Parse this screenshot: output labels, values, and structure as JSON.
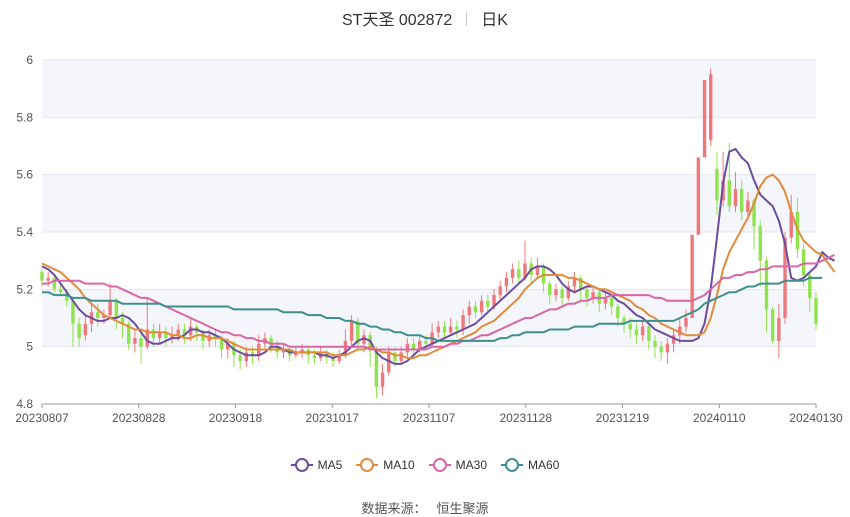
{
  "title": {
    "name": "ST天圣 002872",
    "period": "日K"
  },
  "source": {
    "label": "数据来源：",
    "name": "恒生聚源"
  },
  "chart_data": {
    "type": "candlestick",
    "x_tick_labels": [
      "20230807",
      "20230828",
      "20230918",
      "20231017",
      "20231107",
      "20231128",
      "20231219",
      "20240110",
      "20240130"
    ],
    "y_tick_labels": [
      "4.8",
      "5",
      "5.2",
      "5.4",
      "5.6",
      "5.8",
      "6"
    ],
    "ylim": [
      4.8,
      6.0
    ],
    "grid": true,
    "legend_position": "bottom",
    "colors": {
      "up": "#f0787a",
      "down": "#8fe34c",
      "grid_band": "#f4f6fb"
    },
    "series": [
      {
        "name": "MA5",
        "color": "#6b4d9e",
        "values": [
          5.28,
          5.27,
          5.25,
          5.22,
          5.19,
          5.16,
          5.13,
          5.11,
          5.1,
          5.09,
          5.09,
          5.1,
          5.1,
          5.11,
          5.1,
          5.08,
          5.05,
          5.02,
          5.01,
          5.01,
          5.02,
          5.03,
          5.03,
          5.04,
          5.06,
          5.06,
          5.05,
          5.05,
          5.04,
          5.03,
          5.01,
          4.99,
          4.98,
          4.97,
          4.97,
          4.97,
          4.98,
          5.0,
          5.0,
          4.99,
          4.98,
          4.98,
          4.98,
          4.98,
          4.98,
          4.97,
          4.97,
          4.96,
          4.97,
          4.98,
          5.0,
          5.02,
          5.03,
          5.02,
          4.98,
          4.96,
          4.95,
          4.94,
          4.94,
          4.95,
          4.97,
          4.99,
          5.0,
          5.01,
          5.02,
          5.03,
          5.04,
          5.05,
          5.06,
          5.07,
          5.08,
          5.1,
          5.12,
          5.14,
          5.16,
          5.18,
          5.2,
          5.22,
          5.24,
          5.27,
          5.28,
          5.28,
          5.27,
          5.25,
          5.22,
          5.2,
          5.19,
          5.2,
          5.21,
          5.21,
          5.2,
          5.19,
          5.18,
          5.16,
          5.15,
          5.13,
          5.11,
          5.1,
          5.08,
          5.06,
          5.05,
          5.04,
          5.03,
          5.02,
          5.02,
          5.02,
          5.03,
          5.08,
          5.2,
          5.38,
          5.57,
          5.68,
          5.69,
          5.66,
          5.64,
          5.58,
          5.53,
          5.51,
          5.49,
          5.44,
          5.36,
          5.24,
          5.23,
          5.24,
          5.26,
          5.28,
          5.33,
          5.31,
          5.3
        ]
      },
      {
        "name": "MA10",
        "color": "#e08c3a",
        "values": [
          5.29,
          5.28,
          5.27,
          5.26,
          5.24,
          5.22,
          5.2,
          5.17,
          5.15,
          5.13,
          5.11,
          5.1,
          5.09,
          5.08,
          5.07,
          5.06,
          5.06,
          5.05,
          5.05,
          5.05,
          5.05,
          5.04,
          5.04,
          5.03,
          5.03,
          5.04,
          5.04,
          5.03,
          5.03,
          5.03,
          5.02,
          5.01,
          5.0,
          4.99,
          4.99,
          4.99,
          4.99,
          4.99,
          4.99,
          4.99,
          4.99,
          4.98,
          4.98,
          4.98,
          4.98,
          4.98,
          4.98,
          4.97,
          4.97,
          4.97,
          4.98,
          4.99,
          4.99,
          5.0,
          4.99,
          4.98,
          4.98,
          4.97,
          4.97,
          4.96,
          4.96,
          4.97,
          4.97,
          4.98,
          4.99,
          5.0,
          5.01,
          5.02,
          5.03,
          5.04,
          5.05,
          5.07,
          5.08,
          5.09,
          5.11,
          5.13,
          5.15,
          5.17,
          5.2,
          5.22,
          5.24,
          5.25,
          5.25,
          5.25,
          5.25,
          5.24,
          5.24,
          5.23,
          5.22,
          5.21,
          5.2,
          5.2,
          5.19,
          5.18,
          5.17,
          5.16,
          5.14,
          5.13,
          5.11,
          5.1,
          5.08,
          5.07,
          5.06,
          5.05,
          5.04,
          5.04,
          5.04,
          5.05,
          5.1,
          5.18,
          5.27,
          5.33,
          5.37,
          5.41,
          5.45,
          5.5,
          5.56,
          5.59,
          5.6,
          5.58,
          5.54,
          5.47,
          5.41,
          5.37,
          5.35,
          5.33,
          5.32,
          5.29,
          5.26
        ]
      },
      {
        "name": "MA30",
        "color": "#d966a8",
        "values": [
          5.22,
          5.22,
          5.23,
          5.23,
          5.23,
          5.23,
          5.23,
          5.22,
          5.22,
          5.22,
          5.22,
          5.21,
          5.21,
          5.2,
          5.19,
          5.18,
          5.17,
          5.17,
          5.16,
          5.15,
          5.14,
          5.13,
          5.12,
          5.11,
          5.1,
          5.09,
          5.08,
          5.07,
          5.06,
          5.05,
          5.05,
          5.04,
          5.04,
          5.03,
          5.03,
          5.02,
          5.02,
          5.01,
          5.01,
          5.01,
          5.0,
          5.0,
          5.0,
          5.0,
          5.0,
          5.0,
          5.0,
          5.0,
          5.0,
          5.0,
          5.0,
          5.0,
          5.0,
          4.99,
          4.99,
          4.99,
          4.99,
          4.99,
          4.99,
          4.99,
          4.99,
          4.99,
          4.99,
          5.0,
          5.0,
          5.0,
          5.01,
          5.01,
          5.02,
          5.02,
          5.03,
          5.04,
          5.04,
          5.05,
          5.06,
          5.07,
          5.08,
          5.09,
          5.1,
          5.1,
          5.11,
          5.12,
          5.13,
          5.13,
          5.14,
          5.15,
          5.15,
          5.16,
          5.16,
          5.17,
          5.17,
          5.17,
          5.18,
          5.18,
          5.18,
          5.18,
          5.18,
          5.18,
          5.18,
          5.17,
          5.17,
          5.16,
          5.16,
          5.16,
          5.16,
          5.16,
          5.17,
          5.18,
          5.2,
          5.22,
          5.24,
          5.24,
          5.25,
          5.25,
          5.26,
          5.26,
          5.27,
          5.27,
          5.28,
          5.28,
          5.28,
          5.28,
          5.28,
          5.29,
          5.29,
          5.29,
          5.3,
          5.31,
          5.32
        ]
      },
      {
        "name": "MA60",
        "color": "#3d8f8f",
        "values": [
          5.19,
          5.19,
          5.18,
          5.18,
          5.18,
          5.17,
          5.17,
          5.17,
          5.16,
          5.16,
          5.16,
          5.16,
          5.16,
          5.15,
          5.15,
          5.15,
          5.15,
          5.15,
          5.15,
          5.15,
          5.14,
          5.14,
          5.14,
          5.14,
          5.14,
          5.14,
          5.14,
          5.14,
          5.14,
          5.14,
          5.14,
          5.13,
          5.13,
          5.13,
          5.13,
          5.13,
          5.13,
          5.13,
          5.13,
          5.12,
          5.12,
          5.12,
          5.12,
          5.11,
          5.11,
          5.11,
          5.1,
          5.1,
          5.1,
          5.09,
          5.09,
          5.08,
          5.08,
          5.07,
          5.07,
          5.06,
          5.06,
          5.05,
          5.05,
          5.04,
          5.04,
          5.04,
          5.03,
          5.03,
          5.02,
          5.02,
          5.02,
          5.02,
          5.02,
          5.02,
          5.02,
          5.02,
          5.02,
          5.02,
          5.03,
          5.03,
          5.04,
          5.04,
          5.05,
          5.05,
          5.05,
          5.05,
          5.06,
          5.06,
          5.06,
          5.06,
          5.07,
          5.07,
          5.07,
          5.07,
          5.08,
          5.08,
          5.08,
          5.08,
          5.08,
          5.09,
          5.09,
          5.09,
          5.09,
          5.09,
          5.09,
          5.09,
          5.09,
          5.1,
          5.11,
          5.12,
          5.13,
          5.15,
          5.16,
          5.17,
          5.18,
          5.19,
          5.19,
          5.2,
          5.21,
          5.21,
          5.22,
          5.22,
          5.22,
          5.22,
          5.23,
          5.23,
          5.23,
          5.23,
          5.24,
          5.24,
          5.24
        ]
      }
    ],
    "candles": [
      [
        5.26,
        5.23,
        5.27,
        5.21
      ],
      [
        5.23,
        5.24,
        5.26,
        5.21
      ],
      [
        5.24,
        5.2,
        5.25,
        5.19
      ],
      [
        5.2,
        5.19,
        5.22,
        5.18
      ],
      [
        5.19,
        5.16,
        5.2,
        5.14
      ],
      [
        5.16,
        5.08,
        5.17,
        5.0
      ],
      [
        5.08,
        5.03,
        5.1,
        5.0
      ],
      [
        5.04,
        5.08,
        5.11,
        5.02
      ],
      [
        5.08,
        5.12,
        5.15,
        5.05
      ],
      [
        5.12,
        5.1,
        5.15,
        5.07
      ],
      [
        5.1,
        5.11,
        5.13,
        5.08
      ],
      [
        5.11,
        5.16,
        5.22,
        5.1
      ],
      [
        5.16,
        5.1,
        5.17,
        5.06
      ],
      [
        5.1,
        5.08,
        5.12,
        5.03
      ],
      [
        5.08,
        5.01,
        5.09,
        4.99
      ],
      [
        5.01,
        5.03,
        5.06,
        4.98
      ],
      [
        5.03,
        5.0,
        5.05,
        4.94
      ],
      [
        5.0,
        5.06,
        5.17,
        4.99
      ],
      [
        5.06,
        5.03,
        5.08,
        5.0
      ],
      [
        5.03,
        5.05,
        5.08,
        5.01
      ],
      [
        5.05,
        5.03,
        5.07,
        5.0
      ],
      [
        5.03,
        5.04,
        5.07,
        5.01
      ],
      [
        5.04,
        5.06,
        5.08,
        5.02
      ],
      [
        5.06,
        5.04,
        5.08,
        5.01
      ],
      [
        5.04,
        5.07,
        5.1,
        5.02
      ],
      [
        5.07,
        5.05,
        5.08,
        5.02
      ],
      [
        5.05,
        5.02,
        5.06,
        4.99
      ],
      [
        5.02,
        5.04,
        5.06,
        5.0
      ],
      [
        5.04,
        5.03,
        5.06,
        5.0
      ],
      [
        5.03,
        4.99,
        5.04,
        4.96
      ],
      [
        4.99,
        5.01,
        5.03,
        4.96
      ],
      [
        5.01,
        4.97,
        5.02,
        4.93
      ],
      [
        4.97,
        4.95,
        4.99,
        4.92
      ],
      [
        4.95,
        4.98,
        5.0,
        4.93
      ],
      [
        4.98,
        4.97,
        5.0,
        4.94
      ],
      [
        4.97,
        5.01,
        5.04,
        4.95
      ],
      [
        5.01,
        5.03,
        5.05,
        4.99
      ],
      [
        5.03,
        5.0,
        5.04,
        4.98
      ],
      [
        5.0,
        4.98,
        5.02,
        4.96
      ],
      [
        4.98,
        4.99,
        5.01,
        4.96
      ],
      [
        4.99,
        4.97,
        5.0,
        4.95
      ],
      [
        4.97,
        4.98,
        5.0,
        4.96
      ],
      [
        4.98,
        4.99,
        5.01,
        4.96
      ],
      [
        4.99,
        4.97,
        5.0,
        4.94
      ],
      [
        4.97,
        4.96,
        4.99,
        4.94
      ],
      [
        4.96,
        4.98,
        5.0,
        4.95
      ],
      [
        4.98,
        4.96,
        4.99,
        4.94
      ],
      [
        4.96,
        4.95,
        4.98,
        4.93
      ],
      [
        4.95,
        4.97,
        4.99,
        4.94
      ],
      [
        4.97,
        5.02,
        5.06,
        4.96
      ],
      [
        5.02,
        5.09,
        5.11,
        5.0
      ],
      [
        5.09,
        5.01,
        5.1,
        4.99
      ],
      [
        5.01,
        5.04,
        5.06,
        4.98
      ],
      [
        5.04,
        4.99,
        5.05,
        4.93
      ],
      [
        4.99,
        4.86,
        5.0,
        4.82
      ],
      [
        4.86,
        4.91,
        4.94,
        4.83
      ],
      [
        4.91,
        4.98,
        5.0,
        4.9
      ],
      [
        4.98,
        4.95,
        5.0,
        4.93
      ],
      [
        4.95,
        4.98,
        5.0,
        4.94
      ],
      [
        4.98,
        5.01,
        5.03,
        4.96
      ],
      [
        5.01,
        4.99,
        5.03,
        4.97
      ],
      [
        4.99,
        5.02,
        5.04,
        4.98
      ],
      [
        5.02,
        5.01,
        5.04,
        4.99
      ],
      [
        5.01,
        5.05,
        5.08,
        5.0
      ],
      [
        5.05,
        5.07,
        5.09,
        5.03
      ],
      [
        5.07,
        5.05,
        5.09,
        5.03
      ],
      [
        5.05,
        5.07,
        5.1,
        5.04
      ],
      [
        5.07,
        5.06,
        5.09,
        5.03
      ],
      [
        5.06,
        5.11,
        5.13,
        5.04
      ],
      [
        5.11,
        5.14,
        5.16,
        5.08
      ],
      [
        5.14,
        5.12,
        5.16,
        5.1
      ],
      [
        5.12,
        5.16,
        5.18,
        5.11
      ],
      [
        5.16,
        5.14,
        5.18,
        5.12
      ],
      [
        5.14,
        5.18,
        5.2,
        5.13
      ],
      [
        5.18,
        5.21,
        5.23,
        5.16
      ],
      [
        5.21,
        5.24,
        5.26,
        5.19
      ],
      [
        5.24,
        5.27,
        5.29,
        5.22
      ],
      [
        5.27,
        5.24,
        5.3,
        5.22
      ],
      [
        5.24,
        5.29,
        5.37,
        5.23
      ],
      [
        5.29,
        5.25,
        5.31,
        5.22
      ],
      [
        5.25,
        5.28,
        5.31,
        5.24
      ],
      [
        5.28,
        5.22,
        5.29,
        5.19
      ],
      [
        5.22,
        5.18,
        5.23,
        5.15
      ],
      [
        5.18,
        5.2,
        5.22,
        5.16
      ],
      [
        5.2,
        5.17,
        5.21,
        5.14
      ],
      [
        5.17,
        5.21,
        5.23,
        5.16
      ],
      [
        5.21,
        5.24,
        5.26,
        5.19
      ],
      [
        5.24,
        5.2,
        5.25,
        5.16
      ],
      [
        5.2,
        5.17,
        5.21,
        5.14
      ],
      [
        5.17,
        5.19,
        5.21,
        5.15
      ],
      [
        5.19,
        5.15,
        5.2,
        5.12
      ],
      [
        5.15,
        5.17,
        5.19,
        5.13
      ],
      [
        5.17,
        5.14,
        5.18,
        5.11
      ],
      [
        5.14,
        5.1,
        5.15,
        5.07
      ],
      [
        5.1,
        5.08,
        5.11,
        5.05
      ],
      [
        5.08,
        5.06,
        5.1,
        5.03
      ],
      [
        5.06,
        5.04,
        5.08,
        5.01
      ],
      [
        5.04,
        5.07,
        5.09,
        5.02
      ],
      [
        5.07,
        5.02,
        5.08,
        4.99
      ],
      [
        5.02,
        5.0,
        5.04,
        4.96
      ],
      [
        5.0,
        4.98,
        5.02,
        4.95
      ],
      [
        4.98,
        5.01,
        5.03,
        4.94
      ],
      [
        5.01,
        5.04,
        5.06,
        4.98
      ],
      [
        5.04,
        5.07,
        5.1,
        5.01
      ],
      [
        5.07,
        5.1,
        5.13,
        5.05
      ],
      [
        5.1,
        5.39,
        5.39,
        5.1
      ],
      [
        5.39,
        5.66,
        5.66,
        5.39
      ],
      [
        5.66,
        5.93,
        5.93,
        5.66
      ],
      [
        5.72,
        5.95,
        5.97,
        5.7
      ],
      [
        5.62,
        5.51,
        5.68,
        5.46
      ],
      [
        5.51,
        5.58,
        5.68,
        5.49
      ],
      [
        5.58,
        5.49,
        5.71,
        5.47
      ],
      [
        5.49,
        5.55,
        5.61,
        5.47
      ],
      [
        5.55,
        5.47,
        5.58,
        5.44
      ],
      [
        5.47,
        5.51,
        5.54,
        5.44
      ],
      [
        5.51,
        5.42,
        5.52,
        5.34
      ],
      [
        5.42,
        5.3,
        5.44,
        5.21
      ],
      [
        5.3,
        5.13,
        5.31,
        5.05
      ],
      [
        5.13,
        5.02,
        5.14,
        5.01
      ],
      [
        5.02,
        5.1,
        5.15,
        4.96
      ],
      [
        5.1,
        5.38,
        5.4,
        5.08
      ],
      [
        5.38,
        5.47,
        5.53,
        5.36
      ],
      [
        5.47,
        5.34,
        5.52,
        5.31
      ],
      [
        5.34,
        5.25,
        5.36,
        5.21
      ],
      [
        5.25,
        5.17,
        5.26,
        5.12
      ],
      [
        5.17,
        5.08,
        5.19,
        5.06
      ]
    ]
  }
}
